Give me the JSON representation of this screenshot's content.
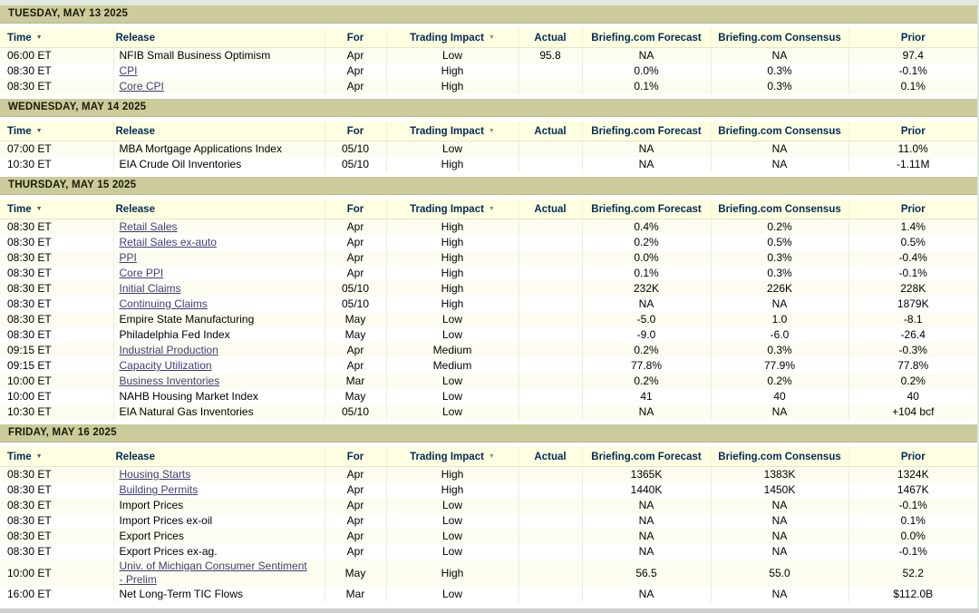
{
  "theme": {
    "day_header_bg": "#cbcb9b",
    "column_header_bg": "#ffffe1",
    "row_alt_bg": "#fcfcf0",
    "link_color": "#3f3f7a",
    "page_bg": "#dfe8df"
  },
  "icons": {
    "sort_down": "▼",
    "filter_down": "▼"
  },
  "columns": [
    {
      "key": "time",
      "label": "Time",
      "icon": "sort_down"
    },
    {
      "key": "release",
      "label": "Release"
    },
    {
      "key": "for",
      "label": "For"
    },
    {
      "key": "impact",
      "label": "Trading Impact",
      "icon": "filter_down"
    },
    {
      "key": "actual",
      "label": "Actual"
    },
    {
      "key": "forecast",
      "label": "Briefing.com Forecast"
    },
    {
      "key": "consensus",
      "label": "Briefing.com Consensus"
    },
    {
      "key": "prior",
      "label": "Prior"
    }
  ],
  "days": [
    {
      "date_label": "TUESDAY, MAY 13 2025",
      "rows": [
        {
          "time": "06:00 ET",
          "release": "NFIB Small Business Optimism",
          "link": false,
          "for": "Apr",
          "impact": "Low",
          "actual": "95.8",
          "forecast": "NA",
          "consensus": "NA",
          "prior": "97.4"
        },
        {
          "time": "08:30 ET",
          "release": "CPI",
          "link": true,
          "for": "Apr",
          "impact": "High",
          "actual": "",
          "forecast": "0.0%",
          "consensus": "0.3%",
          "prior": "-0.1%"
        },
        {
          "time": "08:30 ET",
          "release": "Core CPI",
          "link": true,
          "for": "Apr",
          "impact": "High",
          "actual": "",
          "forecast": "0.1%",
          "consensus": "0.3%",
          "prior": "0.1%"
        }
      ]
    },
    {
      "date_label": "WEDNESDAY, MAY 14 2025",
      "rows": [
        {
          "time": "07:00 ET",
          "release": "MBA Mortgage Applications Index",
          "link": false,
          "for": "05/10",
          "impact": "Low",
          "actual": "",
          "forecast": "NA",
          "consensus": "NA",
          "prior": "11.0%"
        },
        {
          "time": "10:30 ET",
          "release": "EIA Crude Oil Inventories",
          "link": false,
          "for": "05/10",
          "impact": "High",
          "actual": "",
          "forecast": "NA",
          "consensus": "NA",
          "prior": "-1.11M"
        }
      ]
    },
    {
      "date_label": "THURSDAY, MAY 15 2025",
      "rows": [
        {
          "time": "08:30 ET",
          "release": "Retail Sales",
          "link": true,
          "for": "Apr",
          "impact": "High",
          "actual": "",
          "forecast": "0.4%",
          "consensus": "0.2%",
          "prior": "1.4%"
        },
        {
          "time": "08:30 ET",
          "release": "Retail Sales ex-auto",
          "link": true,
          "for": "Apr",
          "impact": "High",
          "actual": "",
          "forecast": "0.2%",
          "consensus": "0.5%",
          "prior": "0.5%"
        },
        {
          "time": "08:30 ET",
          "release": "PPI",
          "link": true,
          "for": "Apr",
          "impact": "High",
          "actual": "",
          "forecast": "0.0%",
          "consensus": "0.3%",
          "prior": "-0.4%"
        },
        {
          "time": "08:30 ET",
          "release": "Core PPI",
          "link": true,
          "for": "Apr",
          "impact": "High",
          "actual": "",
          "forecast": "0.1%",
          "consensus": "0.3%",
          "prior": "-0.1%"
        },
        {
          "time": "08:30 ET",
          "release": "Initial Claims",
          "link": true,
          "for": "05/10",
          "impact": "High",
          "actual": "",
          "forecast": "232K",
          "consensus": "226K",
          "prior": "228K"
        },
        {
          "time": "08:30 ET",
          "release": "Continuing Claims",
          "link": true,
          "for": "05/10",
          "impact": "High",
          "actual": "",
          "forecast": "NA",
          "consensus": "NA",
          "prior": "1879K"
        },
        {
          "time": "08:30 ET",
          "release": "Empire State Manufacturing",
          "link": false,
          "for": "May",
          "impact": "Low",
          "actual": "",
          "forecast": "-5.0",
          "consensus": "1.0",
          "prior": "-8.1"
        },
        {
          "time": "08:30 ET",
          "release": "Philadelphia Fed Index",
          "link": false,
          "for": "May",
          "impact": "Low",
          "actual": "",
          "forecast": "-9.0",
          "consensus": "-6.0",
          "prior": "-26.4"
        },
        {
          "time": "09:15 ET",
          "release": "Industrial Production",
          "link": true,
          "for": "Apr",
          "impact": "Medium",
          "actual": "",
          "forecast": "0.2%",
          "consensus": "0.3%",
          "prior": "-0.3%"
        },
        {
          "time": "09:15 ET",
          "release": "Capacity Utilization",
          "link": true,
          "for": "Apr",
          "impact": "Medium",
          "actual": "",
          "forecast": "77.8%",
          "consensus": "77.9%",
          "prior": "77.8%"
        },
        {
          "time": "10:00 ET",
          "release": "Business Inventories",
          "link": true,
          "for": "Mar",
          "impact": "Low",
          "actual": "",
          "forecast": "0.2%",
          "consensus": "0.2%",
          "prior": "0.2%"
        },
        {
          "time": "10:00 ET",
          "release": "NAHB Housing Market Index",
          "link": false,
          "for": "May",
          "impact": "Low",
          "actual": "",
          "forecast": "41",
          "consensus": "40",
          "prior": "40"
        },
        {
          "time": "10:30 ET",
          "release": "EIA Natural Gas Inventories",
          "link": false,
          "for": "05/10",
          "impact": "Low",
          "actual": "",
          "forecast": "NA",
          "consensus": "NA",
          "prior": "+104 bcf"
        }
      ]
    },
    {
      "date_label": "FRIDAY, MAY 16 2025",
      "rows": [
        {
          "time": "08:30 ET",
          "release": "Housing Starts",
          "link": true,
          "for": "Apr",
          "impact": "High",
          "actual": "",
          "forecast": "1365K",
          "consensus": "1383K",
          "prior": "1324K"
        },
        {
          "time": "08:30 ET",
          "release": "Building Permits",
          "link": true,
          "for": "Apr",
          "impact": "High",
          "actual": "",
          "forecast": "1440K",
          "consensus": "1450K",
          "prior": "1467K"
        },
        {
          "time": "08:30 ET",
          "release": "Import Prices",
          "link": false,
          "for": "Apr",
          "impact": "Low",
          "actual": "",
          "forecast": "NA",
          "consensus": "NA",
          "prior": "-0.1%"
        },
        {
          "time": "08:30 ET",
          "release": "Import Prices ex-oil",
          "link": false,
          "for": "Apr",
          "impact": "Low",
          "actual": "",
          "forecast": "NA",
          "consensus": "NA",
          "prior": "0.1%"
        },
        {
          "time": "08:30 ET",
          "release": "Export Prices",
          "link": false,
          "for": "Apr",
          "impact": "Low",
          "actual": "",
          "forecast": "NA",
          "consensus": "NA",
          "prior": "0.0%"
        },
        {
          "time": "08:30 ET",
          "release": "Export Prices ex-ag.",
          "link": false,
          "for": "Apr",
          "impact": "Low",
          "actual": "",
          "forecast": "NA",
          "consensus": "NA",
          "prior": "-0.1%"
        },
        {
          "time": "10:00 ET",
          "release": "Univ. of Michigan Consumer Sentiment - Prelim",
          "link": true,
          "for": "May",
          "impact": "High",
          "actual": "",
          "forecast": "56.5",
          "consensus": "55.0",
          "prior": "52.2"
        },
        {
          "time": "16:00 ET",
          "release": "Net Long-Term TIC Flows",
          "link": false,
          "for": "Mar",
          "impact": "Low",
          "actual": "",
          "forecast": "NA",
          "consensus": "NA",
          "prior": "$112.0B"
        }
      ]
    }
  ]
}
